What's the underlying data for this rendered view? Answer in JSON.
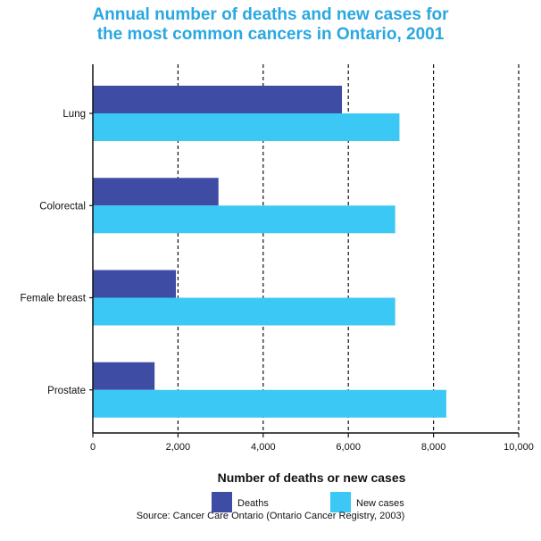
{
  "colors": {
    "title": "#2aa7e0",
    "deaths": "#3e4da3",
    "new_cases": "#3cc8f4",
    "axis": "#111111",
    "grid": "#111111"
  },
  "chart_data": {
    "type": "bar",
    "orientation": "horizontal",
    "title_lines": [
      "Annual number of deaths and new cases for",
      "the most common cancers in Ontario, 2001"
    ],
    "categories": [
      "Lung",
      "Colorectal",
      "Female breast",
      "Prostate"
    ],
    "series": [
      {
        "name": "Deaths",
        "values": [
          5850,
          2950,
          1950,
          1450
        ]
      },
      {
        "name": "New cases",
        "values": [
          7200,
          7100,
          7100,
          8300
        ]
      }
    ],
    "xlabel": "Number of deaths or new cases",
    "ylabel": "",
    "xlim": [
      0,
      10000
    ],
    "xticks": [
      0,
      2000,
      4000,
      6000,
      8000,
      10000
    ],
    "xtick_labels": [
      "0",
      "2,000",
      "4,000",
      "6,000",
      "8,000",
      "10,000"
    ],
    "grid": "dashed vertical",
    "legend_position": "bottom",
    "source": "Source: Cancer Care Ontario (Ontario Cancer Registry, 2003)"
  }
}
